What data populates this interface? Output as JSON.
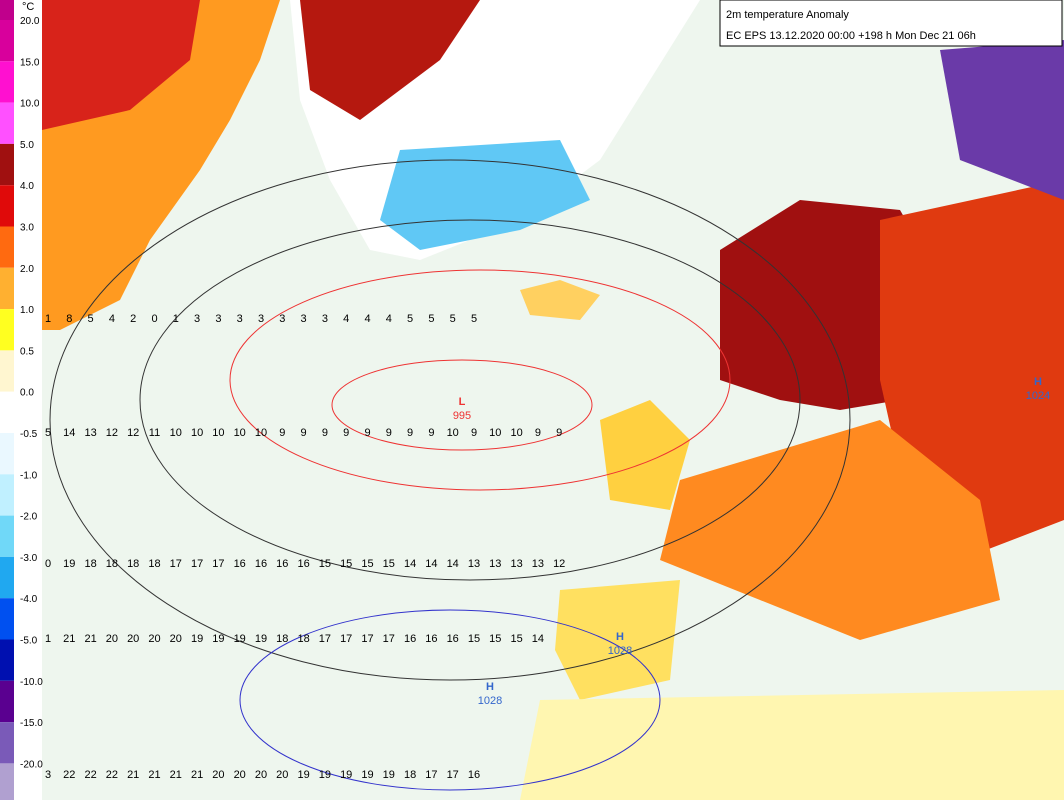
{
  "header": {
    "title": "2m temperature Anomaly",
    "subtitle": "EC EPS 13.12.2020 00:00 +198 h Mon Dec 21 06h"
  },
  "legend": {
    "unit": "°C",
    "labels": [
      "20.0",
      "15.0",
      "10.0",
      "5.0",
      "4.0",
      "3.0",
      "2.0",
      "1.0",
      "0.5",
      "0.0",
      "-0.5",
      "-1.0",
      "-2.0",
      "-3.0",
      "-4.0",
      "-5.0",
      "-10.0",
      "-15.0",
      "-20.0"
    ],
    "colors": [
      "#c0008c",
      "#d8009c",
      "#ff10d0",
      "#ff50ff",
      "#a01010",
      "#e00a0a",
      "#ff6a10",
      "#ffb030",
      "#ffff20",
      "#fff6d0",
      "#ffffff",
      "#eaf8ff",
      "#c0f0ff",
      "#70d8f8",
      "#20a8f0",
      "#0050f0",
      "#0010b0",
      "#5a0090",
      "#7a5ab8",
      "#b0a0d0"
    ]
  },
  "pressure_centers": [
    {
      "symbol": "L",
      "value": 995
    },
    {
      "symbol": "H",
      "value": 1028
    },
    {
      "symbol": "H",
      "value": 1028
    },
    {
      "symbol": "H",
      "value": 1024
    }
  ],
  "grid": {
    "rows": [
      [
        1,
        8,
        5,
        4,
        2,
        0,
        1,
        3,
        3,
        3,
        3,
        3,
        3,
        3,
        4,
        4,
        4,
        5,
        5,
        5,
        5
      ],
      [
        5,
        14,
        13,
        12,
        12,
        11,
        10,
        10,
        10,
        10,
        10,
        9,
        9,
        9,
        9,
        9,
        9,
        9,
        9,
        10,
        9,
        10,
        10,
        9,
        9
      ],
      [
        0,
        19,
        18,
        18,
        18,
        18,
        17,
        17,
        17,
        16,
        16,
        16,
        16,
        15,
        15,
        15,
        15,
        14,
        14,
        14,
        13,
        13,
        13,
        13,
        12
      ],
      [
        1,
        21,
        21,
        20,
        20,
        20,
        20,
        19,
        19,
        19,
        19,
        18,
        18,
        17,
        17,
        17,
        17,
        16,
        16,
        16,
        15,
        15,
        15,
        14
      ],
      [
        3,
        22,
        22,
        22,
        21,
        21,
        21,
        21,
        20,
        20,
        20,
        20,
        19,
        19,
        19,
        19,
        19,
        18,
        17,
        17,
        16
      ]
    ]
  }
}
